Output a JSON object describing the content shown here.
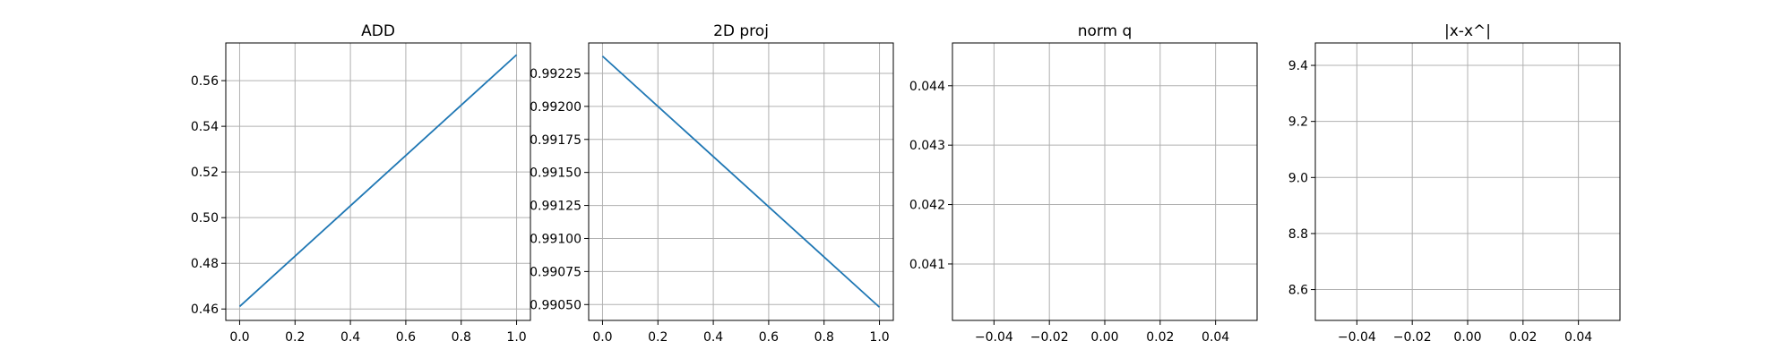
{
  "figure": {
    "background": "#ffffff"
  },
  "chart_data": [
    {
      "type": "line",
      "title": "ADD",
      "xlabel": "",
      "ylabel": "",
      "xlim": [
        -0.05,
        1.05
      ],
      "ylim": [
        0.455,
        0.5765
      ],
      "xticks": [
        0.0,
        0.2,
        0.4,
        0.6,
        0.8,
        1.0
      ],
      "xtick_labels": [
        "0.0",
        "0.2",
        "0.4",
        "0.6",
        "0.8",
        "1.0"
      ],
      "yticks": [
        0.46,
        0.48,
        0.5,
        0.52,
        0.54,
        0.56
      ],
      "ytick_labels": [
        "0.46",
        "0.48",
        "0.50",
        "0.52",
        "0.54",
        "0.56"
      ],
      "grid": true,
      "line_color": "#1f77b4",
      "series": [
        {
          "x": [
            0.0,
            1.0
          ],
          "y": [
            0.4611,
            0.5713
          ]
        }
      ]
    },
    {
      "type": "line",
      "title": "2D proj",
      "xlabel": "",
      "ylabel": "",
      "xlim": [
        -0.05,
        1.05
      ],
      "ylim": [
        0.99038,
        0.99248
      ],
      "xticks": [
        0.0,
        0.2,
        0.4,
        0.6,
        0.8,
        1.0
      ],
      "xtick_labels": [
        "0.0",
        "0.2",
        "0.4",
        "0.6",
        "0.8",
        "1.0"
      ],
      "yticks": [
        0.9905,
        0.99075,
        0.991,
        0.99125,
        0.9915,
        0.99175,
        0.992,
        0.99225
      ],
      "ytick_labels": [
        "0.99050",
        "0.99075",
        "0.99100",
        "0.99125",
        "0.99150",
        "0.99175",
        "0.99200",
        "0.99225"
      ],
      "grid": true,
      "line_color": "#1f77b4",
      "series": [
        {
          "x": [
            0.0,
            1.0
          ],
          "y": [
            0.99238,
            0.99048
          ]
        }
      ]
    },
    {
      "type": "line",
      "title": "norm q",
      "xlabel": "",
      "ylabel": "",
      "xlim": [
        -0.055,
        0.055
      ],
      "ylim": [
        0.04005,
        0.04472
      ],
      "xticks": [
        -0.04,
        -0.02,
        0.0,
        0.02,
        0.04
      ],
      "xtick_labels": [
        "−0.04",
        "−0.02",
        "0.00",
        "0.02",
        "0.04"
      ],
      "yticks": [
        0.041,
        0.042,
        0.043,
        0.044
      ],
      "ytick_labels": [
        "0.041",
        "0.042",
        "0.043",
        "0.044"
      ],
      "grid": true,
      "line_color": "#1f77b4",
      "series": [
        {
          "x": [],
          "y": []
        }
      ]
    },
    {
      "type": "line",
      "title": "|x-x^|",
      "xlabel": "",
      "ylabel": "",
      "xlim": [
        -0.055,
        0.055
      ],
      "ylim": [
        8.49,
        9.48
      ],
      "xticks": [
        -0.04,
        -0.02,
        0.0,
        0.02,
        0.04
      ],
      "xtick_labels": [
        "−0.04",
        "−0.02",
        "0.00",
        "0.02",
        "0.04"
      ],
      "yticks": [
        8.6,
        8.8,
        9.0,
        9.2,
        9.4
      ],
      "ytick_labels": [
        "8.6",
        "8.8",
        "9.0",
        "9.2",
        "9.4"
      ],
      "grid": true,
      "line_color": "#1f77b4",
      "series": [
        {
          "x": [],
          "y": []
        }
      ]
    }
  ]
}
